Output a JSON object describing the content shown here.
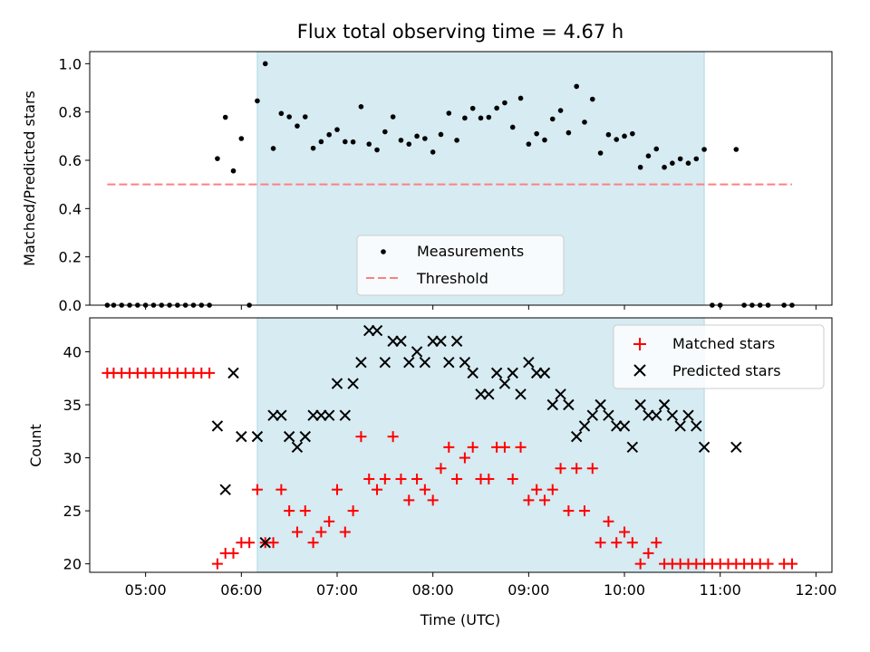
{
  "chart_data": [
    {
      "type": "scatter",
      "title": "Flux total observing time = 4.67 h",
      "xlabel": "",
      "ylabel": "Matched/Predicted stars",
      "ylim": [
        0,
        1.05
      ],
      "yticks": [
        "0.0",
        "0.2",
        "0.4",
        "0.6",
        "0.8",
        "1.0"
      ],
      "grid": false,
      "legend_placement": "lower-center",
      "shaded_span": {
        "start": "06:10",
        "end": "10:50",
        "color": "#add8e6"
      },
      "series": [
        {
          "name": "Measurements",
          "marker": "dot",
          "color": "#000000",
          "points": [
            [
              "04:36",
              0
            ],
            [
              "04:40",
              0
            ],
            [
              "04:45",
              0
            ],
            [
              "04:50",
              0
            ],
            [
              "04:55",
              0
            ],
            [
              "05:00",
              0
            ],
            [
              "05:05",
              0
            ],
            [
              "05:10",
              0
            ],
            [
              "05:15",
              0
            ],
            [
              "05:20",
              0
            ],
            [
              "05:25",
              0
            ],
            [
              "05:30",
              0
            ],
            [
              "05:35",
              0
            ],
            [
              "05:40",
              0
            ],
            [
              "05:45",
              0.607
            ],
            [
              "05:50",
              0.778
            ],
            [
              "05:55",
              0.556
            ],
            [
              "06:00",
              0.69
            ],
            [
              "06:05",
              0
            ],
            [
              "06:10",
              0.846
            ],
            [
              "06:15",
              1.0
            ],
            [
              "06:20",
              0.649
            ],
            [
              "06:25",
              0.794
            ],
            [
              "06:30",
              0.78
            ],
            [
              "06:35",
              0.742
            ],
            [
              "06:40",
              0.78
            ],
            [
              "06:45",
              0.65
            ],
            [
              "06:50",
              0.677
            ],
            [
              "06:55",
              0.706
            ],
            [
              "07:00",
              0.727
            ],
            [
              "07:05",
              0.677
            ],
            [
              "07:10",
              0.676
            ],
            [
              "07:15",
              0.822
            ],
            [
              "07:20",
              0.667
            ],
            [
              "07:25",
              0.643
            ],
            [
              "07:30",
              0.718
            ],
            [
              "07:35",
              0.78
            ],
            [
              "07:40",
              0.683
            ],
            [
              "07:45",
              0.667
            ],
            [
              "07:50",
              0.7
            ],
            [
              "07:55",
              0.69
            ],
            [
              "08:00",
              0.634
            ],
            [
              "08:05",
              0.707
            ],
            [
              "08:10",
              0.795
            ],
            [
              "08:15",
              0.683
            ],
            [
              "08:20",
              0.775
            ],
            [
              "08:25",
              0.815
            ],
            [
              "08:30",
              0.775
            ],
            [
              "08:35",
              0.778
            ],
            [
              "08:40",
              0.816
            ],
            [
              "08:45",
              0.838
            ],
            [
              "08:50",
              0.737
            ],
            [
              "08:55",
              0.857
            ],
            [
              "09:00",
              0.667
            ],
            [
              "09:05",
              0.71
            ],
            [
              "09:10",
              0.684
            ],
            [
              "09:15",
              0.771
            ],
            [
              "09:20",
              0.806
            ],
            [
              "09:25",
              0.714
            ],
            [
              "09:30",
              0.906
            ],
            [
              "09:35",
              0.758
            ],
            [
              "09:40",
              0.853
            ],
            [
              "09:45",
              0.63
            ],
            [
              "09:50",
              0.706
            ],
            [
              "09:55",
              0.686
            ],
            [
              "10:00",
              0.7
            ],
            [
              "10:05",
              0.71
            ],
            [
              "10:10",
              0.571
            ],
            [
              "10:15",
              0.618
            ],
            [
              "10:20",
              0.647
            ],
            [
              "10:25",
              0.571
            ],
            [
              "10:30",
              0.588
            ],
            [
              "10:35",
              0.606
            ],
            [
              "10:40",
              0.588
            ],
            [
              "10:45",
              0.606
            ],
            [
              "10:50",
              0.645
            ],
            [
              "10:55",
              0
            ],
            [
              "11:00",
              0
            ],
            [
              "11:10",
              0.645
            ],
            [
              "11:15",
              0
            ],
            [
              "11:20",
              0
            ],
            [
              "11:25",
              0
            ],
            [
              "11:30",
              0
            ],
            [
              "11:40",
              0
            ],
            [
              "11:45",
              0
            ]
          ]
        },
        {
          "name": "Threshold",
          "line": "dashed",
          "color": "#ff7f7f",
          "points": [
            [
              "04:36",
              0.5
            ],
            [
              "11:45",
              0.5
            ]
          ]
        }
      ]
    },
    {
      "type": "scatter",
      "title": "",
      "xlabel": "Time (UTC)",
      "ylabel": "Count",
      "ylim": [
        19.2,
        43.2
      ],
      "yticks": [
        "20",
        "25",
        "30",
        "35",
        "40"
      ],
      "xlim": [
        "04:25",
        "12:10"
      ],
      "xticks": [
        "05:00",
        "06:00",
        "07:00",
        "08:00",
        "09:00",
        "10:00",
        "11:00",
        "12:00"
      ],
      "grid": false,
      "legend_placement": "top-right",
      "shaded_span": {
        "start": "06:10",
        "end": "10:50",
        "color": "#add8e6"
      },
      "series": [
        {
          "name": "Matched stars",
          "marker": "plus",
          "color": "#ff0000",
          "points": [
            [
              "04:36",
              38
            ],
            [
              "04:40",
              38
            ],
            [
              "04:45",
              38
            ],
            [
              "04:50",
              38
            ],
            [
              "04:55",
              38
            ],
            [
              "05:00",
              38
            ],
            [
              "05:05",
              38
            ],
            [
              "05:10",
              38
            ],
            [
              "05:15",
              38
            ],
            [
              "05:20",
              38
            ],
            [
              "05:25",
              38
            ],
            [
              "05:30",
              38
            ],
            [
              "05:35",
              38
            ],
            [
              "05:40",
              38
            ],
            [
              "05:45",
              20
            ],
            [
              "05:50",
              21
            ],
            [
              "05:55",
              21
            ],
            [
              "06:00",
              22
            ],
            [
              "06:05",
              22
            ],
            [
              "06:10",
              27
            ],
            [
              "06:15",
              22
            ],
            [
              "06:20",
              22
            ],
            [
              "06:25",
              27
            ],
            [
              "06:30",
              25
            ],
            [
              "06:35",
              23
            ],
            [
              "06:40",
              25
            ],
            [
              "06:45",
              22
            ],
            [
              "06:50",
              23
            ],
            [
              "06:55",
              24
            ],
            [
              "07:00",
              27
            ],
            [
              "07:05",
              23
            ],
            [
              "07:10",
              25
            ],
            [
              "07:15",
              32
            ],
            [
              "07:20",
              28
            ],
            [
              "07:25",
              27
            ],
            [
              "07:30",
              28
            ],
            [
              "07:35",
              32
            ],
            [
              "07:40",
              28
            ],
            [
              "07:45",
              26
            ],
            [
              "07:50",
              28
            ],
            [
              "07:55",
              27
            ],
            [
              "08:00",
              26
            ],
            [
              "08:05",
              29
            ],
            [
              "08:10",
              31
            ],
            [
              "08:15",
              28
            ],
            [
              "08:20",
              30
            ],
            [
              "08:25",
              31
            ],
            [
              "08:30",
              28
            ],
            [
              "08:35",
              28
            ],
            [
              "08:40",
              31
            ],
            [
              "08:45",
              31
            ],
            [
              "08:50",
              28
            ],
            [
              "08:55",
              31
            ],
            [
              "09:00",
              26
            ],
            [
              "09:05",
              27
            ],
            [
              "09:10",
              26
            ],
            [
              "09:15",
              27
            ],
            [
              "09:20",
              29
            ],
            [
              "09:25",
              25
            ],
            [
              "09:30",
              29
            ],
            [
              "09:35",
              25
            ],
            [
              "09:40",
              29
            ],
            [
              "09:45",
              22
            ],
            [
              "09:50",
              24
            ],
            [
              "09:55",
              22
            ],
            [
              "10:00",
              23
            ],
            [
              "10:05",
              22
            ],
            [
              "10:10",
              20
            ],
            [
              "10:15",
              21
            ],
            [
              "10:20",
              22
            ],
            [
              "10:25",
              20
            ],
            [
              "10:30",
              20
            ],
            [
              "10:35",
              20
            ],
            [
              "10:40",
              20
            ],
            [
              "10:45",
              20
            ],
            [
              "10:50",
              20
            ],
            [
              "10:55",
              20
            ],
            [
              "11:00",
              20
            ],
            [
              "11:05",
              20
            ],
            [
              "11:10",
              20
            ],
            [
              "11:15",
              20
            ],
            [
              "11:20",
              20
            ],
            [
              "11:25",
              20
            ],
            [
              "11:30",
              20
            ],
            [
              "11:40",
              20
            ],
            [
              "11:45",
              20
            ]
          ]
        },
        {
          "name": "Predicted stars",
          "marker": "x",
          "color": "#000000",
          "points": [
            [
              "05:45",
              33
            ],
            [
              "05:50",
              27
            ],
            [
              "05:55",
              38
            ],
            [
              "06:00",
              32
            ],
            [
              "06:10",
              32
            ],
            [
              "06:15",
              22
            ],
            [
              "06:20",
              34
            ],
            [
              "06:25",
              34
            ],
            [
              "06:30",
              32
            ],
            [
              "06:35",
              31
            ],
            [
              "06:40",
              32
            ],
            [
              "06:45",
              34
            ],
            [
              "06:50",
              34
            ],
            [
              "06:55",
              34
            ],
            [
              "07:00",
              37
            ],
            [
              "07:05",
              34
            ],
            [
              "07:10",
              37
            ],
            [
              "07:15",
              39
            ],
            [
              "07:20",
              42
            ],
            [
              "07:25",
              42
            ],
            [
              "07:30",
              39
            ],
            [
              "07:35",
              41
            ],
            [
              "07:40",
              41
            ],
            [
              "07:45",
              39
            ],
            [
              "07:50",
              40
            ],
            [
              "07:55",
              39
            ],
            [
              "08:00",
              41
            ],
            [
              "08:05",
              41
            ],
            [
              "08:10",
              39
            ],
            [
              "08:15",
              41
            ],
            [
              "08:20",
              39
            ],
            [
              "08:25",
              38
            ],
            [
              "08:30",
              36
            ],
            [
              "08:35",
              36
            ],
            [
              "08:40",
              38
            ],
            [
              "08:45",
              37
            ],
            [
              "08:50",
              38
            ],
            [
              "08:55",
              36
            ],
            [
              "09:00",
              39
            ],
            [
              "09:05",
              38
            ],
            [
              "09:10",
              38
            ],
            [
              "09:15",
              35
            ],
            [
              "09:20",
              36
            ],
            [
              "09:25",
              35
            ],
            [
              "09:30",
              32
            ],
            [
              "09:35",
              33
            ],
            [
              "09:40",
              34
            ],
            [
              "09:45",
              35
            ],
            [
              "09:50",
              34
            ],
            [
              "09:55",
              33
            ],
            [
              "10:00",
              33
            ],
            [
              "10:05",
              31
            ],
            [
              "10:10",
              35
            ],
            [
              "10:15",
              34
            ],
            [
              "10:20",
              34
            ],
            [
              "10:25",
              35
            ],
            [
              "10:30",
              34
            ],
            [
              "10:35",
              33
            ],
            [
              "10:40",
              34
            ],
            [
              "10:45",
              33
            ],
            [
              "10:50",
              31
            ],
            [
              "11:10",
              31
            ]
          ]
        }
      ]
    }
  ]
}
